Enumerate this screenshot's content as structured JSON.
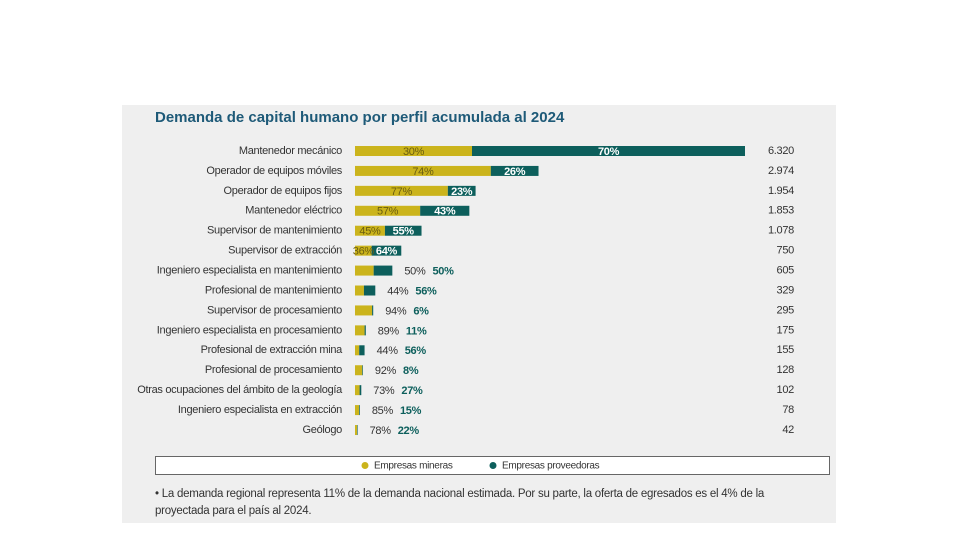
{
  "chart_data": {
    "type": "stacked_bar_share",
    "title": "Demanda de capital humano por perfil acumulada al 2024",
    "categories": [
      "Mantenedor mecánico",
      "Operador de equipos móviles",
      "Operador de equipos fijos",
      "Mantenedor eléctrico",
      "Supervisor de mantenimiento",
      "Supervisor de extracción",
      "Ingeniero especialista en mantenimiento",
      "Profesional de mantenimiento",
      "Supervisor de procesamiento",
      "Ingeniero especialista en procesamiento",
      "Profesional de extracción mina",
      "Profesional de procesamiento",
      "Otras ocupaciones del ámbito de la geología",
      "Ingeniero especialista en extracción",
      "Geólogo"
    ],
    "values": [
      6320,
      2974,
      1954,
      1853,
      1078,
      750,
      605,
      329,
      295,
      175,
      155,
      128,
      102,
      78,
      42
    ],
    "value_labels": [
      "6.320",
      "2.974",
      "1.954",
      "1.853",
      "1.078",
      "750",
      "605",
      "329",
      "295",
      "175",
      "155",
      "128",
      "102",
      "78",
      "42"
    ],
    "series": [
      {
        "name": "Empresas mineras",
        "color": "#cbb41c",
        "values": [
          30,
          74,
          77,
          57,
          45,
          36,
          50,
          44,
          94,
          89,
          44,
          92,
          73,
          85,
          78
        ],
        "value_labels": [
          "30%",
          "74%",
          "77%",
          "57%",
          "45%",
          "36%",
          "50%",
          "44%",
          "94%",
          "89%",
          "44%",
          "92%",
          "73%",
          "85%",
          "78%"
        ]
      },
      {
        "name": "Empresas proveedoras",
        "color": "#0d5f5c",
        "values": [
          70,
          26,
          23,
          43,
          55,
          64,
          50,
          56,
          6,
          11,
          56,
          8,
          27,
          15,
          22
        ],
        "value_labels": [
          "70%",
          "26%",
          "23%",
          "43%",
          "55%",
          "64%",
          "50%",
          "56%",
          "6%",
          "11%",
          "56%",
          "8%",
          "27%",
          "15%",
          "22%"
        ]
      }
    ],
    "footnote": "• La demanda regional representa 11% de la demanda nacional estimada. Por su parte, la oferta de egresados es el 4% de la proyectada para el país al 2024."
  }
}
